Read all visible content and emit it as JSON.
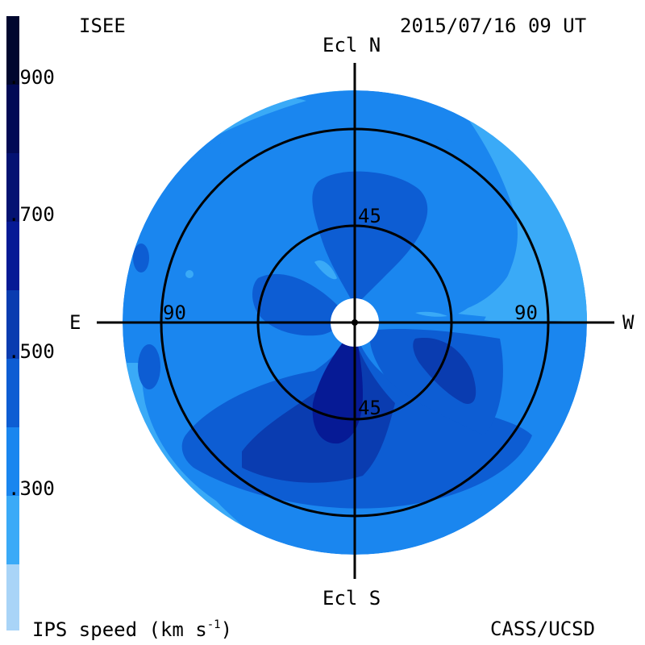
{
  "header": {
    "observatory": "ISEE",
    "datetime": "2015/07/16 09 UT"
  },
  "footer": {
    "quantity_label": "IPS speed (km s",
    "unit_exponent": "-1",
    "quantity_label_close": ")",
    "credit": "CASS/UCSD"
  },
  "map": {
    "direction_labels": {
      "north": "Ecl N",
      "south": "Ecl S",
      "east": "E",
      "west": "W"
    },
    "ring_labels": {
      "inner_north": "45",
      "inner_south": "45",
      "outer_east": "90",
      "outer_west": "90"
    }
  },
  "colorbar": {
    "tick_labels": [
      "900",
      "700",
      "500",
      "300"
    ],
    "levels": [
      {
        "range": "<200",
        "color": "#a9d4f7"
      },
      {
        "range": "200-300",
        "color": "#3aaaf7"
      },
      {
        "range": "300-400",
        "color": "#1a86ef"
      },
      {
        "range": "400-500",
        "color": "#0d5dd3"
      },
      {
        "range": "500-600",
        "color": "#0a3cb0"
      },
      {
        "range": "600-700",
        "color": "#061a95"
      },
      {
        "range": "700-800",
        "color": "#041272"
      },
      {
        "range": "800-900",
        "color": "#020a55"
      },
      {
        "range": ">900",
        "color": "#01072e"
      }
    ]
  }
}
